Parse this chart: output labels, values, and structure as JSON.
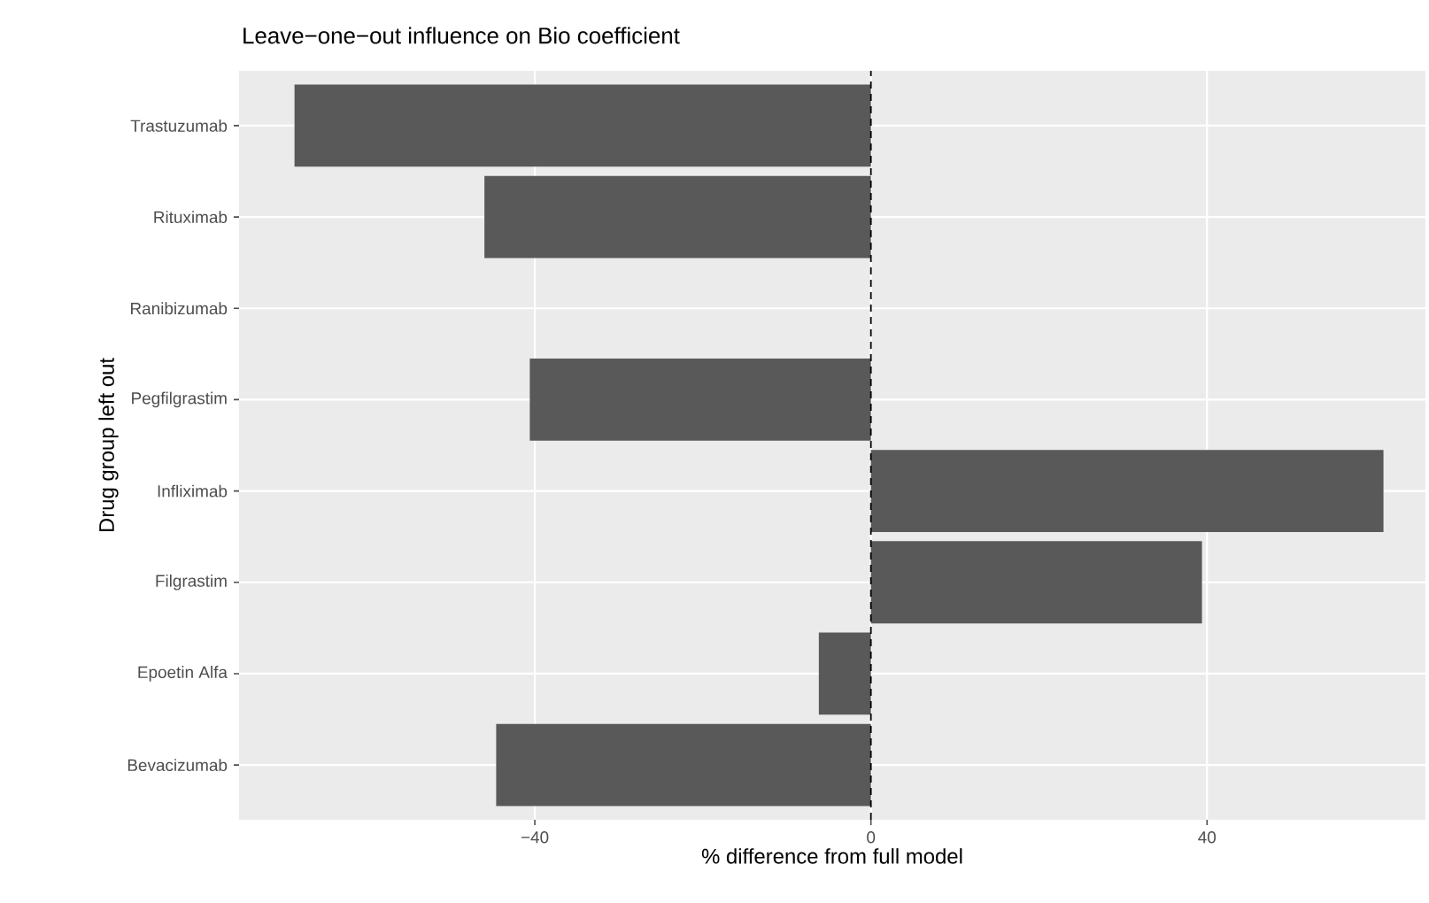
{
  "chart_data": {
    "type": "bar",
    "orientation": "horizontal",
    "title": "Leave−one−out influence on Bio coefficient",
    "xlabel": "% difference from full model",
    "ylabel": "Drug group left out",
    "categories": [
      "Trastuzumab",
      "Rituximab",
      "Ranibizumab",
      "Pegfilgrastim",
      "Infliximab",
      "Filgrastim",
      "Epoetin Alfa",
      "Bevacizumab"
    ],
    "values": [
      -68.6,
      -46.0,
      0,
      -40.6,
      61.0,
      39.4,
      -6.2,
      -44.6
    ],
    "color": "#595959",
    "xlim": [
      -75.2,
      66
    ],
    "xticks": [
      {
        "value": -40,
        "label": "−40"
      },
      0,
      40
    ],
    "grid": true,
    "ref_lines": [
      {
        "axis": "x",
        "value": 0,
        "color": "#000000",
        "line_style": "dashed"
      }
    ]
  }
}
